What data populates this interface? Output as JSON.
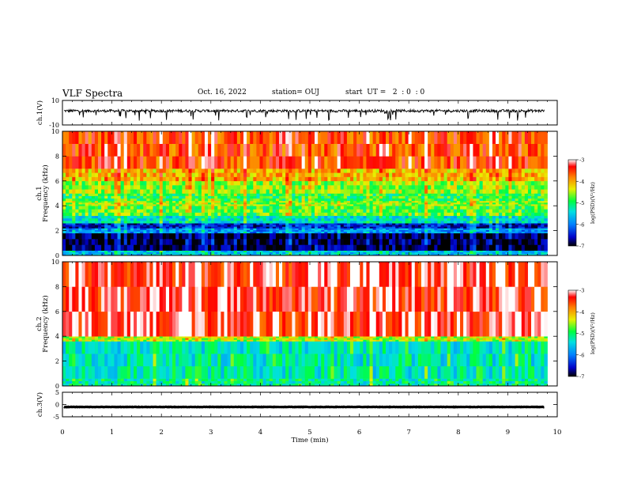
{
  "header": {
    "title": "VLF Spectra",
    "date": "Oct. 16, 2022",
    "station": "station= OUJ",
    "start": "start  UT =   2  : 0  : 0"
  },
  "chart_data": [
    {
      "type": "line",
      "name": "ch1-waveform",
      "ylabel": "ch.1(V)",
      "ylim": [
        -10,
        10
      ],
      "yticks": [
        "10",
        "-10"
      ],
      "xlim": [
        0,
        10
      ],
      "baseline": 1.5
    },
    {
      "type": "heatmap",
      "name": "ch1-spectrogram",
      "ylabel": "ch.1  Frequency  (kHz)",
      "ylim": [
        0,
        10
      ],
      "yticks": [
        "0",
        "2",
        "4",
        "6",
        "8",
        "10"
      ],
      "xlim": [
        0,
        9.8
      ],
      "colorbar": {
        "label": "log(PSD)(V²/Hz)",
        "range": [
          -7,
          -3
        ],
        "ticks": [
          "-3",
          "-4",
          "-5",
          "-6",
          "-7"
        ]
      },
      "bands": [
        {
          "from": 0,
          "to": 0.4,
          "level": -5.6
        },
        {
          "from": 0.4,
          "to": 1.8,
          "level": -6.9
        },
        {
          "from": 1.8,
          "to": 2.2,
          "level": -5.9
        },
        {
          "from": 2.2,
          "to": 2.6,
          "level": -6.5
        },
        {
          "from": 2.6,
          "to": 3.2,
          "level": -5.4
        },
        {
          "from": 3.2,
          "to": 4.0,
          "level": -4.8
        },
        {
          "from": 4.0,
          "to": 4.4,
          "level": -4.6
        },
        {
          "from": 4.4,
          "to": 5.0,
          "level": -4.9
        },
        {
          "from": 5.0,
          "to": 6.0,
          "level": -4.6
        },
        {
          "from": 6.0,
          "to": 7.0,
          "level": -4.1
        },
        {
          "from": 7.0,
          "to": 10,
          "level": -3.6
        }
      ]
    },
    {
      "type": "heatmap",
      "name": "ch2-spectrogram",
      "ylabel": "ch.2  Frequency  (kHz)",
      "ylim": [
        0,
        10
      ],
      "yticks": [
        "0",
        "2",
        "4",
        "6",
        "8",
        "10"
      ],
      "xlim": [
        0,
        9.8
      ],
      "colorbar": {
        "label": "log(PSD)(V²/Hz)",
        "range": [
          -7,
          -3
        ],
        "ticks": [
          "-3",
          "-4",
          "-5",
          "-6",
          "-7"
        ]
      },
      "bands": [
        {
          "from": 0,
          "to": 0.6,
          "level": -5.2
        },
        {
          "from": 0.6,
          "to": 3.6,
          "level": -5.3
        },
        {
          "from": 3.6,
          "to": 4.0,
          "level": -4.5
        },
        {
          "from": 4.0,
          "to": 10,
          "level": -3.3
        }
      ]
    },
    {
      "type": "line",
      "name": "ch3-waveform",
      "ylabel": "ch.3(V)",
      "ylim": [
        -5,
        5
      ],
      "yticks": [
        "5",
        "0",
        "-5"
      ],
      "xlim": [
        0,
        10
      ],
      "baseline": -1.0
    }
  ],
  "xaxis": {
    "label": "Time  (min)",
    "ticks": [
      "0",
      "1",
      "2",
      "3",
      "4",
      "5",
      "6",
      "7",
      "8",
      "9",
      "10"
    ]
  }
}
